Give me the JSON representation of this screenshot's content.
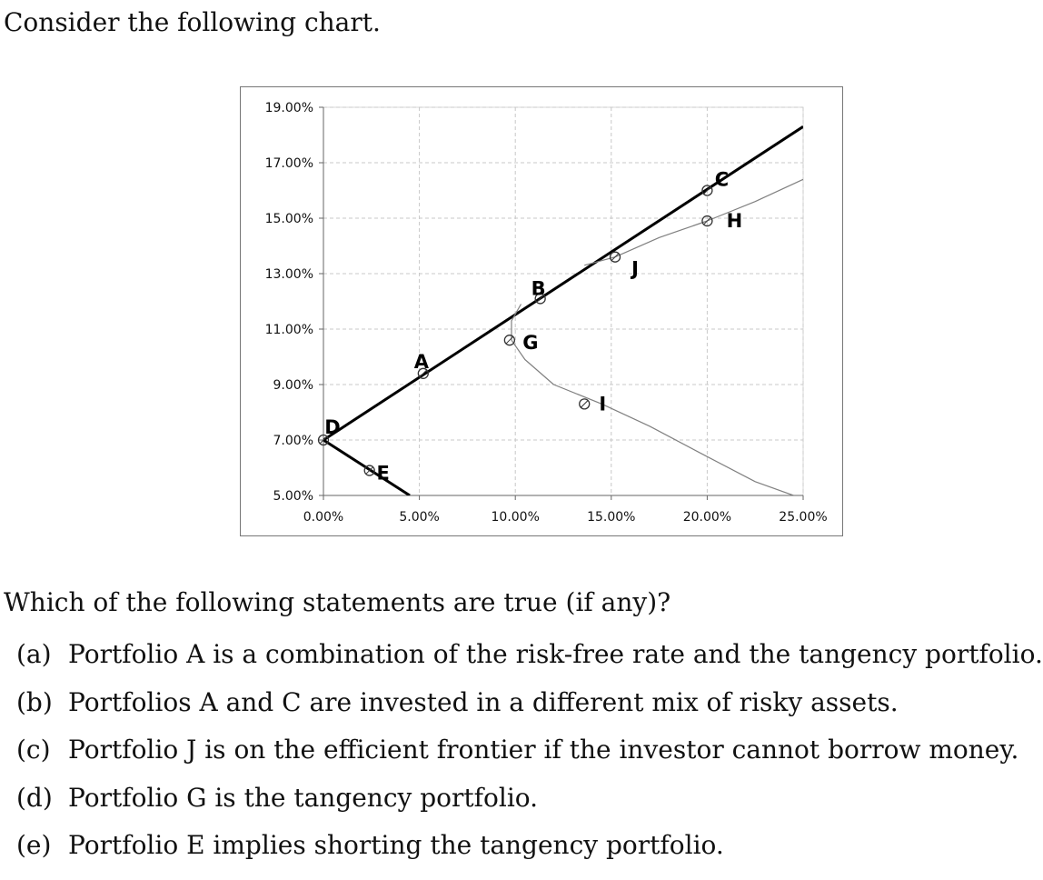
{
  "intro": "Consider the following chart.",
  "question": "Which of the following statements are true (if any)?",
  "options": [
    {
      "label": "(a)",
      "text": "Portfolio A is a combination of the risk-free rate and the tangency portfolio."
    },
    {
      "label": "(b)",
      "text": "Portfolios A and C are invested in a different mix of risky assets."
    },
    {
      "label": "(c)",
      "text": "Portfolio J is on the efficient frontier if the investor cannot borrow money."
    },
    {
      "label": "(d)",
      "text": "Portfolio G is the tangency portfolio."
    },
    {
      "label": "(e)",
      "text": "Portfolio E implies shorting the tangency portfolio."
    }
  ],
  "chart_data": {
    "type": "scatter",
    "x_ticks": [
      "0.00%",
      "5.00%",
      "10.00%",
      "15.00%",
      "20.00%",
      "25.00%"
    ],
    "y_ticks": [
      "5.00%",
      "7.00%",
      "9.00%",
      "11.00%",
      "13.00%",
      "15.00%",
      "17.00%",
      "19.00%"
    ],
    "xlim": [
      0,
      25
    ],
    "ylim": [
      5,
      19
    ],
    "grid": true,
    "lines": [
      {
        "name": "upper",
        "style": "thick",
        "points": [
          [
            0,
            7
          ],
          [
            25,
            18.3
          ]
        ]
      },
      {
        "name": "lower",
        "style": "thick",
        "points": [
          [
            0,
            7
          ],
          [
            4.5,
            5
          ]
        ]
      },
      {
        "name": "frontier",
        "style": "thin",
        "points": [
          [
            13.6,
            13.3
          ],
          [
            15.2,
            13.6
          ],
          [
            17.5,
            14.3
          ],
          [
            20,
            14.9
          ],
          [
            22.5,
            15.6
          ],
          [
            25,
            16.4
          ]
        ]
      },
      {
        "name": "frontier-lower",
        "style": "thin",
        "points": [
          [
            10.3,
            11.9
          ],
          [
            9.8,
            11.3
          ],
          [
            9.8,
            10.6
          ],
          [
            10.5,
            9.9
          ],
          [
            12,
            9.0
          ],
          [
            14.5,
            8.3
          ],
          [
            17,
            7.5
          ],
          [
            20,
            6.4
          ],
          [
            22.5,
            5.5
          ],
          [
            24.5,
            5.0
          ]
        ]
      }
    ],
    "points": [
      {
        "label": "A",
        "x": 5.2,
        "y": 9.4
      },
      {
        "label": "B",
        "x": 11.3,
        "y": 12.1
      },
      {
        "label": "C",
        "x": 20.0,
        "y": 16.0
      },
      {
        "label": "D",
        "x": 0.0,
        "y": 7.0
      },
      {
        "label": "E",
        "x": 2.4,
        "y": 5.9
      },
      {
        "label": "G",
        "x": 9.7,
        "y": 10.6
      },
      {
        "label": "H",
        "x": 20.0,
        "y": 14.9
      },
      {
        "label": "I",
        "x": 13.6,
        "y": 8.3
      },
      {
        "label": "J",
        "x": 15.2,
        "y": 13.6
      }
    ],
    "colors": {
      "axis": "#666666",
      "grid": "#c8c8c8",
      "line": "#000000",
      "frontier": "#808080"
    }
  }
}
